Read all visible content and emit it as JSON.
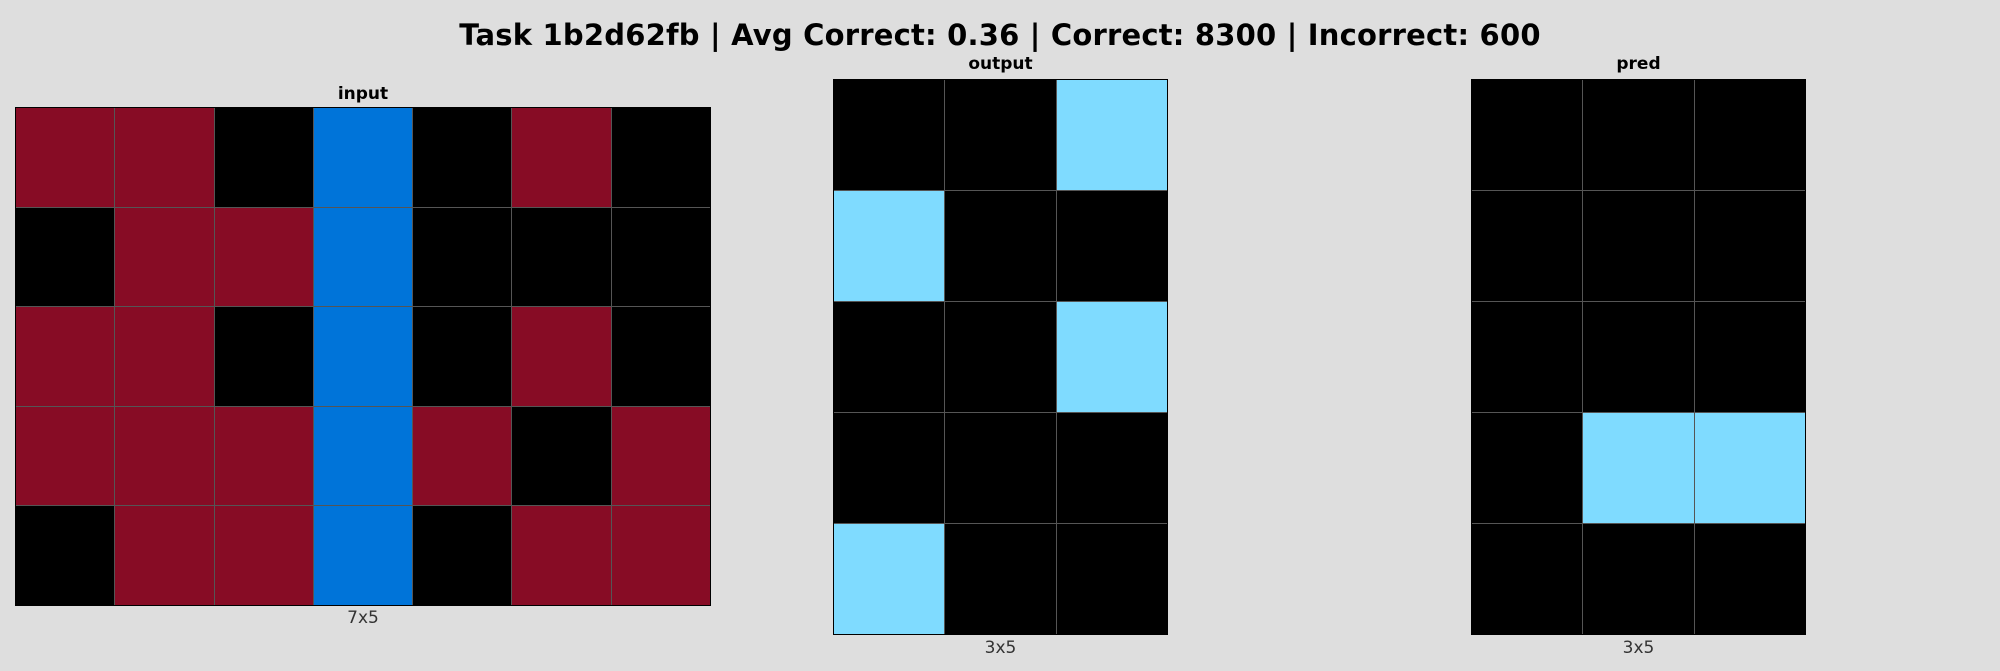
{
  "title": "Task 1b2d62fb | Avg Correct: 0.36 | Correct: 8300 | Incorrect: 600",
  "palette": {
    "0": "#000000",
    "1": "#0074d9",
    "8": "#7fdbff",
    "9": "#870c25"
  },
  "panels": {
    "input": {
      "label": "input",
      "dims": "7x5",
      "cells": [
        [
          9,
          9,
          0,
          1,
          0,
          9,
          0
        ],
        [
          0,
          9,
          9,
          1,
          0,
          0,
          0
        ],
        [
          9,
          9,
          0,
          1,
          0,
          9,
          0
        ],
        [
          9,
          9,
          9,
          1,
          9,
          0,
          9
        ],
        [
          0,
          9,
          9,
          1,
          0,
          9,
          9
        ]
      ]
    },
    "output": {
      "label": "output",
      "dims": "3x5",
      "cells": [
        [
          0,
          0,
          8
        ],
        [
          8,
          0,
          0
        ],
        [
          0,
          0,
          8
        ],
        [
          0,
          0,
          0
        ],
        [
          8,
          0,
          0
        ]
      ]
    },
    "pred": {
      "label": "pred",
      "dims": "3x5",
      "cells": [
        [
          0,
          0,
          0
        ],
        [
          0,
          0,
          0
        ],
        [
          0,
          0,
          0
        ],
        [
          0,
          8,
          8
        ],
        [
          0,
          0,
          0
        ]
      ]
    }
  }
}
